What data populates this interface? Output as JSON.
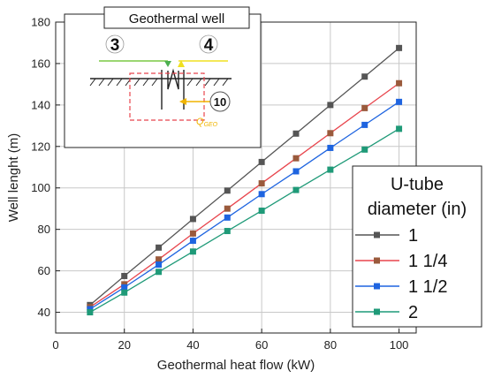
{
  "chart_data": {
    "type": "line",
    "x": [
      10,
      20,
      30,
      40,
      50,
      60,
      70,
      80,
      90,
      100
    ],
    "xlabel": "Geothermal heat flow (kW)",
    "ylabel": "Well lenght (m)",
    "xlim": [
      0,
      105
    ],
    "ylim": [
      30,
      180
    ],
    "xticks": [
      "0",
      "20",
      "40",
      "60",
      "80",
      "100"
    ],
    "yticks": [
      "40",
      "60",
      "80",
      "100",
      "120",
      "140",
      "160",
      "180"
    ],
    "grid": true,
    "legend_title": [
      "U-tube",
      "diameter (in)"
    ],
    "legend_placement": "right",
    "series": [
      {
        "name": "1",
        "color": "#555555",
        "values": [
          43.5,
          57.5,
          71.2,
          85.0,
          98.7,
          112.5,
          126.2,
          140.0,
          153.7,
          167.5
        ]
      },
      {
        "name": "1 1/4",
        "color": "#e8454d",
        "marker_color": "#9a5a3c",
        "values": [
          42.5,
          53.5,
          65.5,
          78.0,
          90.0,
          102.2,
          114.3,
          126.4,
          138.5,
          150.5
        ]
      },
      {
        "name": "1 1/2",
        "color": "#1e64e0",
        "values": [
          41.5,
          52.0,
          63.0,
          74.5,
          85.7,
          97.0,
          108.0,
          119.3,
          130.4,
          141.5
        ]
      },
      {
        "name": "2",
        "color": "#1f9a78",
        "values": [
          40.0,
          49.5,
          59.5,
          69.3,
          79.2,
          89.0,
          99.0,
          108.8,
          118.5,
          128.5
        ]
      }
    ],
    "inset": {
      "title": "Geothermal well",
      "label_left": "3",
      "label_right": "4",
      "label_node": "10",
      "label_heat": "Q",
      "label_heat_sub": "GEO"
    }
  }
}
